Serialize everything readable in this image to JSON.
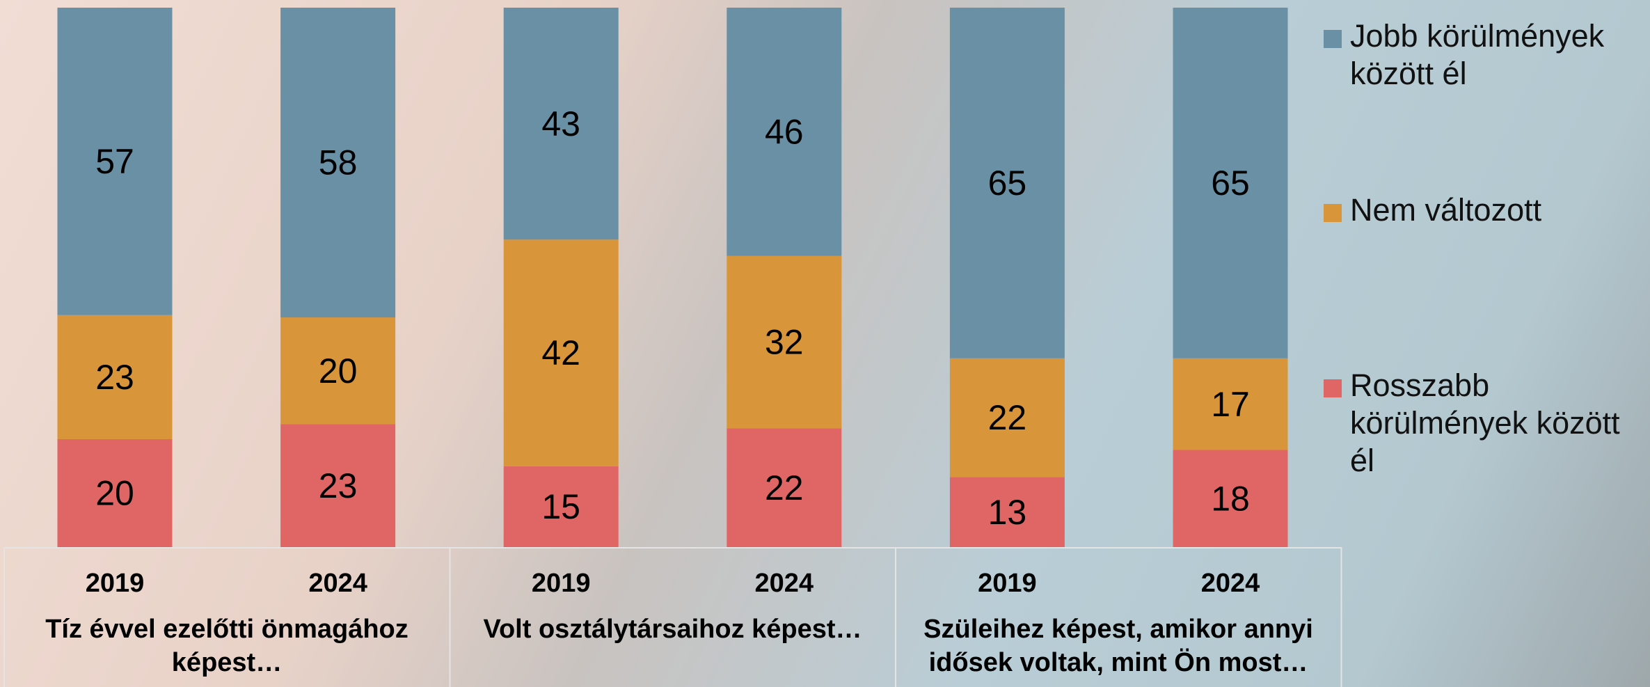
{
  "chart_data": {
    "type": "stacked_bar",
    "categories": [
      "2019",
      "2024",
      "2019",
      "2024",
      "2019",
      "2024"
    ],
    "groups": [
      "Tíz évvel ezelőtti önmagához képest…",
      "Volt osztálytársaihoz képest…",
      "Szüleihez képest, amikor annyi idősek voltak, mint Ön most…"
    ],
    "series": [
      {
        "name": "Rosszabb körülmények között él",
        "color": "#e06666",
        "values": [
          20,
          23,
          15,
          22,
          13,
          18
        ]
      },
      {
        "name": "Nem változott",
        "color": "#d8953a",
        "values": [
          23,
          20,
          42,
          32,
          22,
          17
        ]
      },
      {
        "name": "Jobb körülmények között él",
        "color": "#6a90a6",
        "values": [
          57,
          58,
          43,
          46,
          65,
          65
        ]
      }
    ],
    "legend": "right"
  }
}
